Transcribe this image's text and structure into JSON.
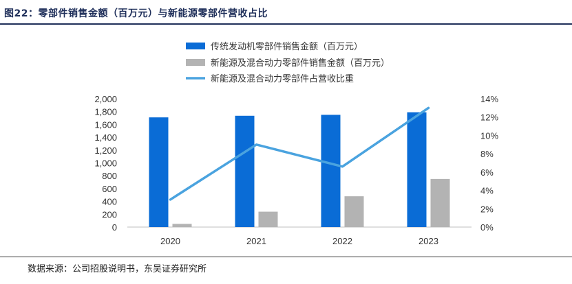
{
  "figure_title": "图22：零部件销售金额（百万元）与新能源零部件营收占比",
  "source": "数据来源：公司招股说明书，东吴证券研究所",
  "colors": {
    "series1": "#0a6cd6",
    "series2": "#b3b3b3",
    "series3": "#4aa3df",
    "title": "#1f2f5a"
  },
  "chart_data": {
    "type": "bar",
    "categories": [
      "2020",
      "2021",
      "2022",
      "2023"
    ],
    "series": [
      {
        "name": "传统发动机零部件销售金额（百万元）",
        "type": "bar",
        "axis": "left",
        "color": "#0a6cd6",
        "values": [
          1710,
          1735,
          1750,
          1790
        ]
      },
      {
        "name": "新能源及混合动力零部件销售金额（百万元）",
        "type": "bar",
        "axis": "left",
        "color": "#b3b3b3",
        "values": [
          50,
          240,
          480,
          750
        ]
      },
      {
        "name": "新能源及混合动力零部件占营收比重",
        "type": "line",
        "axis": "right",
        "color": "#4aa3df",
        "values": [
          0.03,
          0.09,
          0.066,
          0.13
        ]
      }
    ],
    "left_axis": {
      "min": 0,
      "max": 2000,
      "step": 200,
      "tick_labels": [
        "0",
        "200",
        "400",
        "600",
        "800",
        "1,000",
        "1,200",
        "1,400",
        "1,600",
        "1,800",
        "2,000"
      ]
    },
    "right_axis": {
      "min": 0,
      "max": 0.14,
      "step": 0.02,
      "tick_labels": [
        "0%",
        "2%",
        "4%",
        "6%",
        "8%",
        "10%",
        "12%",
        "14%"
      ]
    },
    "grid": false,
    "legend_position": "top-center"
  }
}
